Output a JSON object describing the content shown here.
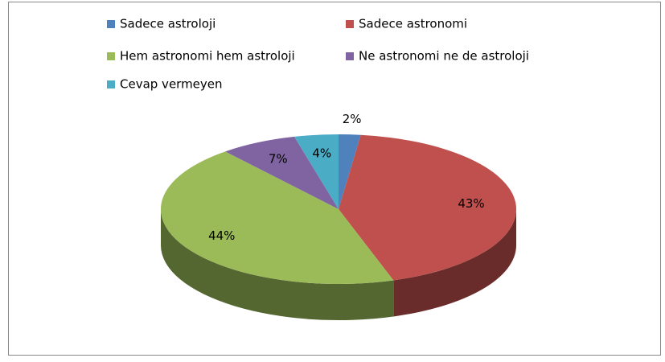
{
  "chart_data": {
    "type": "pie3d",
    "categories": [
      "Sadece astroloji",
      "Sadece astronomi",
      "Hem astronomi hem astroloji",
      "Ne astronomi ne de astroloji",
      "Cevap vermeyen"
    ],
    "values": [
      2,
      43,
      44,
      7,
      4
    ],
    "value_labels": [
      "2%",
      "43%",
      "44%",
      "7%",
      "4%"
    ],
    "colors": [
      "#4f81bd",
      "#c0504d",
      "#9bbb59",
      "#8064a2",
      "#4bacc6"
    ],
    "legend": "top"
  }
}
